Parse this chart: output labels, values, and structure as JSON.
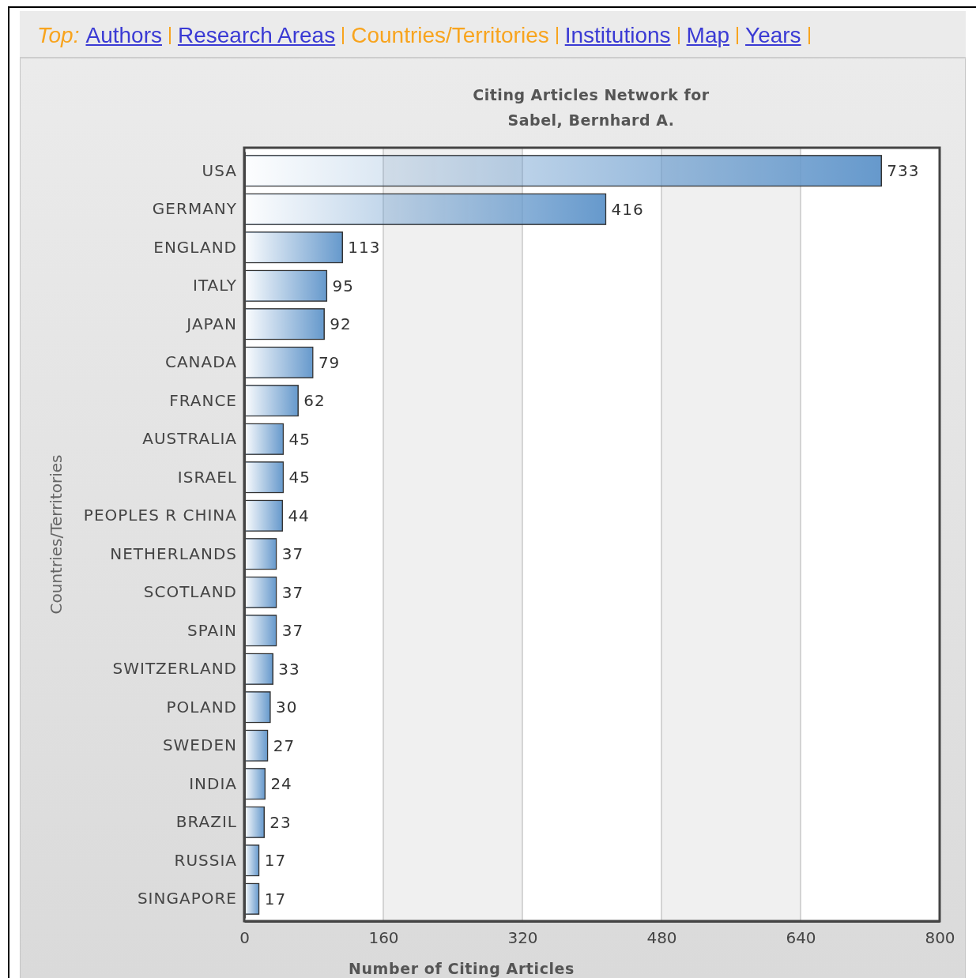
{
  "chart_data": {
    "type": "bar",
    "orientation": "horizontal",
    "title": "Citing Articles Network for",
    "subtitle": "Sabel, Bernhard A.",
    "xlabel": "Number of Citing Articles",
    "ylabel": "Countries/Territories",
    "categories": [
      "USA",
      "GERMANY",
      "ENGLAND",
      "ITALY",
      "JAPAN",
      "CANADA",
      "FRANCE",
      "AUSTRALIA",
      "ISRAEL",
      "PEOPLES R CHINA",
      "NETHERLANDS",
      "SCOTLAND",
      "SPAIN",
      "SWITZERLAND",
      "POLAND",
      "SWEDEN",
      "INDIA",
      "BRAZIL",
      "RUSSIA",
      "SINGAPORE"
    ],
    "values": [
      733,
      416,
      113,
      95,
      92,
      79,
      62,
      45,
      45,
      44,
      37,
      37,
      37,
      33,
      30,
      27,
      24,
      23,
      17,
      17
    ],
    "color": "#6699cc",
    "xlim": [
      0,
      800
    ],
    "xticks": [
      0,
      160,
      320,
      480,
      640,
      800
    ],
    "grid": "x",
    "data_labels": true,
    "annotations": [
      "Top:",
      "Authors",
      "Research Areas",
      "Countries/Territories",
      "Institutions",
      "Map",
      "Years"
    ]
  }
}
